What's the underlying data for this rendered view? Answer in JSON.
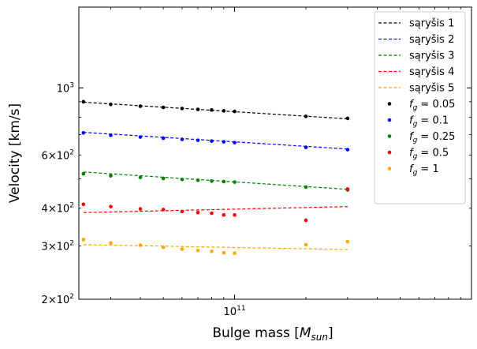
{
  "chart_data": {
    "type": "scatter",
    "xlabel": "Bulge mass [M_sun]",
    "ylabel": "Velocity [km/s]",
    "x_scale": "log",
    "y_scale": "log",
    "xlim": [
      22000000000.0,
      1000000000000.0
    ],
    "ylim": [
      200,
      1850
    ],
    "x_tick_label": "10^11",
    "y_ticks": [
      {
        "value": 1000,
        "label": "10^3"
      },
      {
        "value": 600,
        "label": "6×10^2"
      },
      {
        "value": 400,
        "label": "4×10^2"
      },
      {
        "value": 300,
        "label": "3×10^2"
      },
      {
        "value": 200,
        "label": "2×10^2"
      }
    ],
    "x": [
      23000000000.0,
      30000000000.0,
      40000000000.0,
      50000000000.0,
      60000000000.0,
      70000000000.0,
      80000000000.0,
      90000000000.0,
      100000000000.0,
      200000000000.0,
      300000000000.0
    ],
    "series": [
      {
        "name": "f_g = 0.05",
        "kind": "points",
        "color": "#000000",
        "values": [
          900,
          882,
          870,
          862,
          855,
          849,
          845,
          840,
          836,
          805,
          793
        ]
      },
      {
        "name": "f_g = 0.1",
        "kind": "points",
        "color": "#0000ff",
        "values": [
          710,
          697,
          688,
          682,
          676,
          671,
          667,
          663,
          659,
          636,
          625
        ]
      },
      {
        "name": "f_g = 0.25",
        "kind": "points",
        "color": "#008000",
        "values": [
          520,
          512,
          506,
          502,
          498,
          495,
          492,
          490,
          488,
          470,
          460
        ]
      },
      {
        "name": "f_g = 0.5",
        "kind": "points",
        "color": "#ff0000",
        "values": [
          412,
          405,
          398,
          396,
          390,
          387,
          385,
          380,
          380,
          365,
          463
        ]
      },
      {
        "name": "f_g = 1",
        "kind": "points",
        "color": "#ffa500",
        "values": [
          315,
          307,
          302,
          297,
          293,
          290,
          288,
          285,
          284,
          303,
          310
        ]
      }
    ],
    "fits": [
      {
        "name": "sąryšis 1",
        "color": "#000000",
        "x": [
          23000000000.0,
          300000000000.0
        ],
        "values": [
          897,
          790
        ]
      },
      {
        "name": "sąryšis 2",
        "color": "#0000ff",
        "x": [
          23000000000.0,
          300000000000.0
        ],
        "values": [
          713,
          628
        ]
      },
      {
        "name": "sąryšis 3",
        "color": "#008000",
        "x": [
          23000000000.0,
          300000000000.0
        ],
        "values": [
          527,
          462
        ]
      },
      {
        "name": "sąryšis 4",
        "color": "#ff0000",
        "x": [
          23000000000.0,
          300000000000.0
        ],
        "values": [
          387,
          405
        ]
      },
      {
        "name": "sąryšis 5",
        "color": "#ffa500",
        "x": [
          23000000000.0,
          300000000000.0
        ],
        "values": [
          303,
          292
        ]
      }
    ],
    "legend_position": "top-right",
    "grid": false
  }
}
